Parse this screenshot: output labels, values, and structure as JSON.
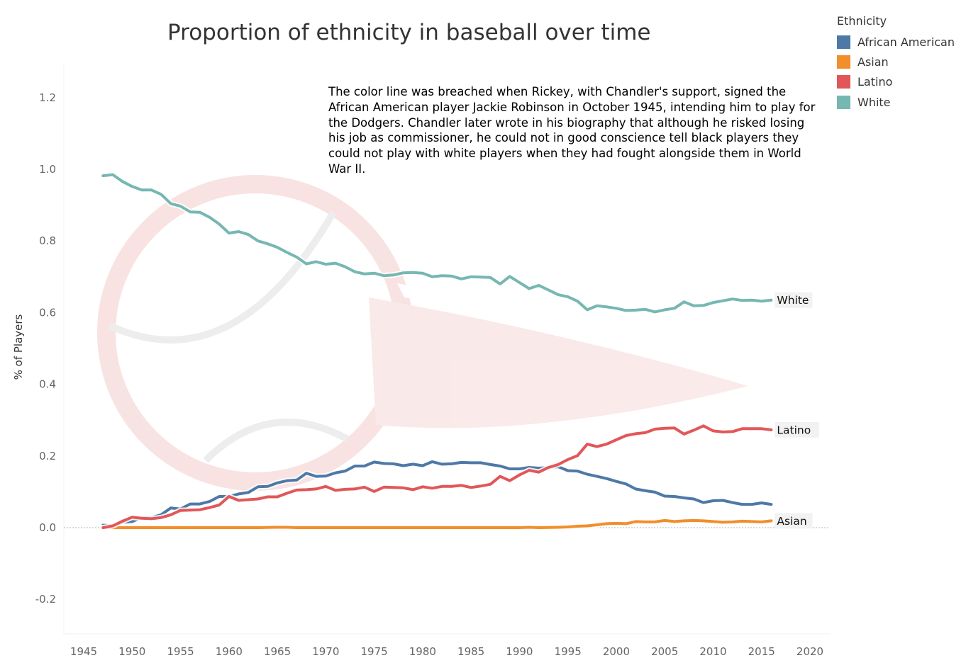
{
  "chart_data": {
    "type": "line",
    "title": "Proportion of ethnicity in baseball over time",
    "ylabel": "% of Players",
    "xlabel": "",
    "xlim": [
      1943,
      2021
    ],
    "ylim": [
      -0.28,
      1.3
    ],
    "x_ticks": [
      1945,
      1950,
      1955,
      1960,
      1965,
      1970,
      1975,
      1980,
      1985,
      1990,
      1995,
      2000,
      2005,
      2010,
      2015,
      2020
    ],
    "y_ticks": [
      -0.2,
      0.0,
      0.2,
      0.4,
      0.6,
      0.8,
      1.0,
      1.2
    ],
    "y_tick_labels": [
      "-0.2",
      "0.0",
      "0.2",
      "0.4",
      "0.6",
      "0.8",
      "1.0",
      "1.2"
    ],
    "grid": false,
    "reference_line": 0.0,
    "legend_position": "top-right",
    "legend_title": "Ethnicity",
    "annotation": "The color line was breached when Rickey, with Chandler's support, signed the African American player Jackie Robinson in October 1945, intending him to play for the Dodgers. Chandler later wrote in his biography that although he risked losing his job as commissioner, he could not in good conscience tell black players they could not play with white players when they had fought alongside them in World War II.",
    "series": [
      {
        "name": "African American",
        "color": "#4e79a7",
        "end_label": "",
        "points": [
          [
            1947,
            0.007
          ],
          [
            1948,
            0.005
          ],
          [
            1949,
            0.015
          ],
          [
            1950,
            0.017
          ],
          [
            1951,
            0.028
          ],
          [
            1952,
            0.028
          ],
          [
            1953,
            0.036
          ],
          [
            1954,
            0.055
          ],
          [
            1955,
            0.052
          ],
          [
            1956,
            0.066
          ],
          [
            1957,
            0.066
          ],
          [
            1958,
            0.073
          ],
          [
            1959,
            0.087
          ],
          [
            1960,
            0.087
          ],
          [
            1961,
            0.094
          ],
          [
            1962,
            0.098
          ],
          [
            1963,
            0.114
          ],
          [
            1964,
            0.115
          ],
          [
            1965,
            0.125
          ],
          [
            1966,
            0.131
          ],
          [
            1967,
            0.133
          ],
          [
            1968,
            0.152
          ],
          [
            1969,
            0.143
          ],
          [
            1970,
            0.144
          ],
          [
            1971,
            0.153
          ],
          [
            1972,
            0.158
          ],
          [
            1973,
            0.172
          ],
          [
            1974,
            0.172
          ],
          [
            1975,
            0.183
          ],
          [
            1976,
            0.179
          ],
          [
            1977,
            0.178
          ],
          [
            1978,
            0.173
          ],
          [
            1979,
            0.177
          ],
          [
            1980,
            0.173
          ],
          [
            1981,
            0.184
          ],
          [
            1982,
            0.177
          ],
          [
            1983,
            0.178
          ],
          [
            1984,
            0.182
          ],
          [
            1985,
            0.181
          ],
          [
            1986,
            0.181
          ],
          [
            1987,
            0.176
          ],
          [
            1988,
            0.172
          ],
          [
            1989,
            0.164
          ],
          [
            1990,
            0.164
          ],
          [
            1991,
            0.168
          ],
          [
            1992,
            0.166
          ],
          [
            1993,
            0.168
          ],
          [
            1994,
            0.17
          ],
          [
            1995,
            0.159
          ],
          [
            1996,
            0.158
          ],
          [
            1997,
            0.149
          ],
          [
            1998,
            0.143
          ],
          [
            1999,
            0.137
          ],
          [
            2000,
            0.129
          ],
          [
            2001,
            0.122
          ],
          [
            2002,
            0.108
          ],
          [
            2003,
            0.103
          ],
          [
            2004,
            0.099
          ],
          [
            2005,
            0.088
          ],
          [
            2006,
            0.087
          ],
          [
            2007,
            0.083
          ],
          [
            2008,
            0.08
          ],
          [
            2009,
            0.07
          ],
          [
            2010,
            0.075
          ],
          [
            2011,
            0.076
          ],
          [
            2012,
            0.07
          ],
          [
            2013,
            0.065
          ],
          [
            2014,
            0.065
          ],
          [
            2015,
            0.069
          ],
          [
            2016,
            0.065
          ]
        ]
      },
      {
        "name": "Asian",
        "color": "#f28e2b",
        "end_label": "Asian",
        "points": [
          [
            1947,
            0.0
          ],
          [
            1950,
            0.0
          ],
          [
            1955,
            0.0
          ],
          [
            1960,
            0.0
          ],
          [
            1963,
            0.0
          ],
          [
            1965,
            0.001
          ],
          [
            1966,
            0.001
          ],
          [
            1967,
            0.0
          ],
          [
            1970,
            0.0
          ],
          [
            1975,
            0.0
          ],
          [
            1980,
            0.0
          ],
          [
            1985,
            0.0
          ],
          [
            1990,
            0.0
          ],
          [
            1991,
            0.001
          ],
          [
            1992,
            0.0
          ],
          [
            1994,
            0.001
          ],
          [
            1995,
            0.002
          ],
          [
            1996,
            0.004
          ],
          [
            1997,
            0.005
          ],
          [
            1998,
            0.008
          ],
          [
            1999,
            0.011
          ],
          [
            2000,
            0.012
          ],
          [
            2001,
            0.011
          ],
          [
            2002,
            0.017
          ],
          [
            2003,
            0.016
          ],
          [
            2004,
            0.016
          ],
          [
            2005,
            0.02
          ],
          [
            2006,
            0.017
          ],
          [
            2007,
            0.019
          ],
          [
            2008,
            0.02
          ],
          [
            2009,
            0.019
          ],
          [
            2010,
            0.017
          ],
          [
            2011,
            0.015
          ],
          [
            2012,
            0.016
          ],
          [
            2013,
            0.018
          ],
          [
            2014,
            0.017
          ],
          [
            2015,
            0.016
          ],
          [
            2016,
            0.019
          ]
        ]
      },
      {
        "name": "Latino",
        "color": "#e15759",
        "end_label": "Latino",
        "points": [
          [
            1947,
            0.0
          ],
          [
            1948,
            0.005
          ],
          [
            1949,
            0.018
          ],
          [
            1950,
            0.029
          ],
          [
            1951,
            0.026
          ],
          [
            1952,
            0.025
          ],
          [
            1953,
            0.028
          ],
          [
            1954,
            0.036
          ],
          [
            1955,
            0.048
          ],
          [
            1956,
            0.049
          ],
          [
            1957,
            0.05
          ],
          [
            1958,
            0.056
          ],
          [
            1959,
            0.063
          ],
          [
            1960,
            0.087
          ],
          [
            1961,
            0.076
          ],
          [
            1962,
            0.078
          ],
          [
            1963,
            0.08
          ],
          [
            1964,
            0.086
          ],
          [
            1965,
            0.086
          ],
          [
            1966,
            0.096
          ],
          [
            1967,
            0.105
          ],
          [
            1968,
            0.106
          ],
          [
            1969,
            0.108
          ],
          [
            1970,
            0.115
          ],
          [
            1971,
            0.104
          ],
          [
            1972,
            0.107
          ],
          [
            1973,
            0.108
          ],
          [
            1974,
            0.113
          ],
          [
            1975,
            0.101
          ],
          [
            1976,
            0.113
          ],
          [
            1977,
            0.112
          ],
          [
            1978,
            0.111
          ],
          [
            1979,
            0.106
          ],
          [
            1980,
            0.114
          ],
          [
            1981,
            0.11
          ],
          [
            1982,
            0.115
          ],
          [
            1983,
            0.115
          ],
          [
            1984,
            0.118
          ],
          [
            1985,
            0.112
          ],
          [
            1986,
            0.116
          ],
          [
            1987,
            0.121
          ],
          [
            1988,
            0.143
          ],
          [
            1989,
            0.131
          ],
          [
            1990,
            0.147
          ],
          [
            1991,
            0.16
          ],
          [
            1992,
            0.155
          ],
          [
            1993,
            0.168
          ],
          [
            1994,
            0.176
          ],
          [
            1995,
            0.19
          ],
          [
            1996,
            0.201
          ],
          [
            1997,
            0.233
          ],
          [
            1998,
            0.226
          ],
          [
            1999,
            0.233
          ],
          [
            2000,
            0.245
          ],
          [
            2001,
            0.257
          ],
          [
            2002,
            0.262
          ],
          [
            2003,
            0.265
          ],
          [
            2004,
            0.275
          ],
          [
            2005,
            0.277
          ],
          [
            2006,
            0.278
          ],
          [
            2007,
            0.261
          ],
          [
            2008,
            0.272
          ],
          [
            2009,
            0.284
          ],
          [
            2010,
            0.27
          ],
          [
            2011,
            0.267
          ],
          [
            2012,
            0.268
          ],
          [
            2013,
            0.276
          ],
          [
            2014,
            0.276
          ],
          [
            2015,
            0.276
          ],
          [
            2016,
            0.273
          ]
        ]
      },
      {
        "name": "White",
        "color": "#76b7b2",
        "end_label": "White",
        "points": [
          [
            1947,
            0.982
          ],
          [
            1948,
            0.985
          ],
          [
            1949,
            0.966
          ],
          [
            1950,
            0.952
          ],
          [
            1951,
            0.942
          ],
          [
            1952,
            0.942
          ],
          [
            1953,
            0.93
          ],
          [
            1954,
            0.904
          ],
          [
            1955,
            0.897
          ],
          [
            1956,
            0.881
          ],
          [
            1957,
            0.88
          ],
          [
            1958,
            0.866
          ],
          [
            1959,
            0.847
          ],
          [
            1960,
            0.822
          ],
          [
            1961,
            0.826
          ],
          [
            1962,
            0.818
          ],
          [
            1963,
            0.8
          ],
          [
            1964,
            0.792
          ],
          [
            1965,
            0.782
          ],
          [
            1966,
            0.768
          ],
          [
            1967,
            0.755
          ],
          [
            1968,
            0.736
          ],
          [
            1969,
            0.742
          ],
          [
            1970,
            0.735
          ],
          [
            1971,
            0.738
          ],
          [
            1972,
            0.728
          ],
          [
            1973,
            0.714
          ],
          [
            1974,
            0.708
          ],
          [
            1975,
            0.71
          ],
          [
            1976,
            0.703
          ],
          [
            1977,
            0.705
          ],
          [
            1978,
            0.711
          ],
          [
            1979,
            0.712
          ],
          [
            1980,
            0.71
          ],
          [
            1981,
            0.7
          ],
          [
            1982,
            0.703
          ],
          [
            1983,
            0.702
          ],
          [
            1984,
            0.694
          ],
          [
            1985,
            0.7
          ],
          [
            1986,
            0.699
          ],
          [
            1987,
            0.698
          ],
          [
            1988,
            0.68
          ],
          [
            1989,
            0.701
          ],
          [
            1990,
            0.684
          ],
          [
            1991,
            0.667
          ],
          [
            1992,
            0.676
          ],
          [
            1993,
            0.663
          ],
          [
            1994,
            0.65
          ],
          [
            1995,
            0.644
          ],
          [
            1996,
            0.632
          ],
          [
            1997,
            0.608
          ],
          [
            1998,
            0.619
          ],
          [
            1999,
            0.616
          ],
          [
            2000,
            0.612
          ],
          [
            2001,
            0.606
          ],
          [
            2002,
            0.607
          ],
          [
            2003,
            0.609
          ],
          [
            2004,
            0.602
          ],
          [
            2005,
            0.608
          ],
          [
            2006,
            0.612
          ],
          [
            2007,
            0.63
          ],
          [
            2008,
            0.619
          ],
          [
            2009,
            0.62
          ],
          [
            2010,
            0.628
          ],
          [
            2011,
            0.633
          ],
          [
            2012,
            0.638
          ],
          [
            2013,
            0.634
          ],
          [
            2014,
            0.635
          ],
          [
            2015,
            0.632
          ],
          [
            2016,
            0.635
          ]
        ]
      }
    ]
  }
}
